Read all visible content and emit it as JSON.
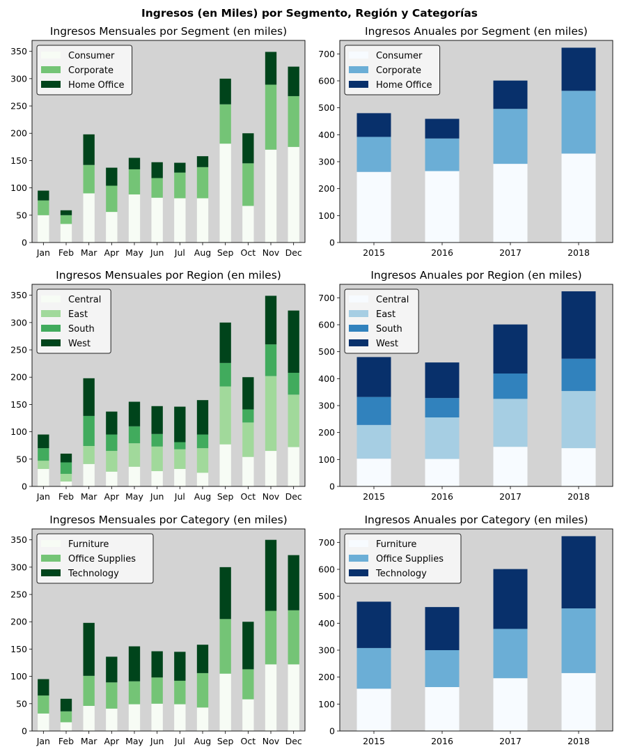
{
  "suptitle": "Ingresos (en Miles) por Segmento, Región y Categorías",
  "chart_data": [
    {
      "type": "bar",
      "stacked": true,
      "title": "Ingresos Mensuales por Segment (en miles)",
      "categories": [
        "Jan",
        "Feb",
        "Mar",
        "Apr",
        "May",
        "Jun",
        "Jul",
        "Aug",
        "Sep",
        "Oct",
        "Nov",
        "Dec"
      ],
      "ylim": [
        0,
        370
      ],
      "yticks": [
        0,
        50,
        100,
        150,
        200,
        250,
        300,
        350
      ],
      "legend": "top-left",
      "grid": false,
      "series": [
        {
          "name": "Consumer",
          "color": "#f7fcf5",
          "values": [
            50,
            34,
            90,
            56,
            88,
            82,
            81,
            81,
            181,
            67,
            170,
            175
          ]
        },
        {
          "name": "Corporate",
          "color": "#74c476",
          "values": [
            27,
            16,
            52,
            48,
            46,
            36,
            47,
            57,
            72,
            78,
            119,
            93
          ]
        },
        {
          "name": "Home Office",
          "color": "#00441b",
          "values": [
            18,
            9,
            56,
            33,
            21,
            29,
            18,
            20,
            47,
            55,
            60,
            54
          ]
        }
      ]
    },
    {
      "type": "bar",
      "stacked": true,
      "title": "Ingresos Anuales por Segment (en miles)",
      "categories": [
        "2015",
        "2016",
        "2017",
        "2018"
      ],
      "ylim": [
        0,
        750
      ],
      "yticks": [
        0,
        100,
        200,
        300,
        400,
        500,
        600,
        700
      ],
      "legend": "top-left",
      "grid": false,
      "series": [
        {
          "name": "Consumer",
          "color": "#f7fbff",
          "values": [
            262,
            265,
            292,
            330
          ]
        },
        {
          "name": "Corporate",
          "color": "#6baed6",
          "values": [
            130,
            121,
            204,
            233
          ]
        },
        {
          "name": "Home Office",
          "color": "#08306b",
          "values": [
            88,
            73,
            105,
            160
          ]
        }
      ]
    },
    {
      "type": "bar",
      "stacked": true,
      "title": "Ingresos Mensuales por Region (en miles)",
      "categories": [
        "Jan",
        "Feb",
        "Mar",
        "Apr",
        "May",
        "Jun",
        "Jul",
        "Aug",
        "Sep",
        "Oct",
        "Nov",
        "Dec"
      ],
      "ylim": [
        0,
        370
      ],
      "yticks": [
        0,
        50,
        100,
        150,
        200,
        250,
        300,
        350
      ],
      "legend": "top-left",
      "grid": false,
      "series": [
        {
          "name": "Central",
          "color": "#f7fcf5",
          "values": [
            32,
            9,
            41,
            27,
            36,
            28,
            32,
            25,
            77,
            54,
            65,
            72
          ]
        },
        {
          "name": "East",
          "color": "#a1d99b",
          "values": [
            15,
            14,
            33,
            38,
            43,
            45,
            36,
            45,
            106,
            63,
            137,
            96
          ]
        },
        {
          "name": "South",
          "color": "#41ab5d",
          "values": [
            23,
            21,
            55,
            30,
            31,
            23,
            13,
            25,
            43,
            24,
            58,
            40
          ]
        },
        {
          "name": "West",
          "color": "#00441b",
          "values": [
            25,
            16,
            69,
            42,
            45,
            51,
            65,
            63,
            74,
            59,
            89,
            114
          ]
        }
      ]
    },
    {
      "type": "bar",
      "stacked": true,
      "title": "Ingresos Anuales por Region (en miles)",
      "categories": [
        "2015",
        "2016",
        "2017",
        "2018"
      ],
      "ylim": [
        0,
        750
      ],
      "yticks": [
        0,
        100,
        200,
        300,
        400,
        500,
        600,
        700
      ],
      "legend": "top-left",
      "grid": false,
      "series": [
        {
          "name": "Central",
          "color": "#f7fbff",
          "values": [
            103,
            102,
            147,
            142
          ]
        },
        {
          "name": "East",
          "color": "#a6cee3",
          "values": [
            125,
            154,
            178,
            212
          ]
        },
        {
          "name": "South",
          "color": "#3182bd",
          "values": [
            104,
            72,
            94,
            120
          ]
        },
        {
          "name": "West",
          "color": "#08306b",
          "values": [
            148,
            132,
            182,
            250
          ]
        }
      ]
    },
    {
      "type": "bar",
      "stacked": true,
      "title": "Ingresos Mensuales por Category (en miles)",
      "categories": [
        "Jan",
        "Feb",
        "Mar",
        "Apr",
        "May",
        "Jun",
        "Jul",
        "Aug",
        "Sep",
        "Oct",
        "Nov",
        "Dec"
      ],
      "ylim": [
        0,
        370
      ],
      "yticks": [
        0,
        50,
        100,
        150,
        200,
        250,
        300,
        350
      ],
      "legend": "top-left",
      "grid": false,
      "series": [
        {
          "name": "Furniture",
          "color": "#f7fcf5",
          "values": [
            32,
            16,
            46,
            41,
            49,
            50,
            49,
            43,
            105,
            58,
            122,
            122
          ]
        },
        {
          "name": "Office Supplies",
          "color": "#74c476",
          "values": [
            33,
            20,
            55,
            48,
            42,
            48,
            43,
            63,
            100,
            55,
            98,
            99
          ]
        },
        {
          "name": "Technology",
          "color": "#00441b",
          "values": [
            30,
            23,
            97,
            47,
            64,
            48,
            53,
            52,
            95,
            87,
            130,
            101
          ]
        }
      ]
    },
    {
      "type": "bar",
      "stacked": true,
      "title": "Ingresos Anuales por Category (en miles)",
      "categories": [
        "2015",
        "2016",
        "2017",
        "2018"
      ],
      "ylim": [
        0,
        750
      ],
      "yticks": [
        0,
        100,
        200,
        300,
        400,
        500,
        600,
        700
      ],
      "legend": "top-left",
      "grid": false,
      "series": [
        {
          "name": "Furniture",
          "color": "#f7fbff",
          "values": [
            157,
            163,
            196,
            215
          ]
        },
        {
          "name": "Office Supplies",
          "color": "#6baed6",
          "values": [
            151,
            137,
            183,
            240
          ]
        },
        {
          "name": "Technology",
          "color": "#08306b",
          "values": [
            172,
            160,
            222,
            268
          ]
        }
      ]
    }
  ]
}
